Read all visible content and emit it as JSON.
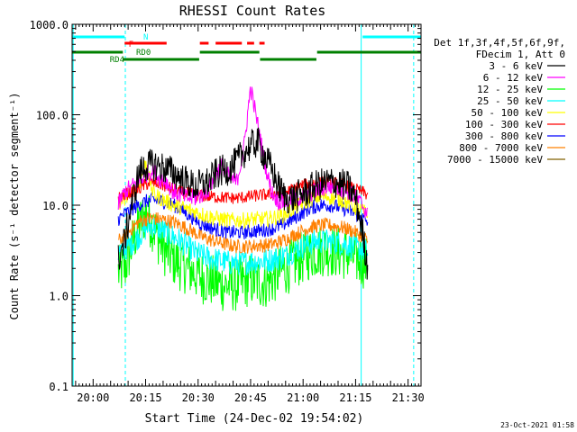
{
  "chart_data": {
    "type": "line",
    "title": "RHESSI Count Rates",
    "xlabel": "Start Time (24-Dec-02 19:54:02)",
    "ylabel": "Count Rate (s⁻¹ detector segment⁻¹)",
    "y_scale": "log",
    "ylim": [
      0.1,
      1000
    ],
    "x_unit": "minutes after 19:54:02 UT",
    "xlim": [
      0,
      99.7
    ],
    "x_ticks": [
      {
        "label": "20:00",
        "x": 6
      },
      {
        "label": "20:15",
        "x": 21
      },
      {
        "label": "20:30",
        "x": 36
      },
      {
        "label": "20:45",
        "x": 51
      },
      {
        "label": "21:00",
        "x": 66
      },
      {
        "label": "21:15",
        "x": 81
      },
      {
        "label": "21:30",
        "x": 96
      }
    ],
    "y_ticks": [
      {
        "label": "0.1",
        "v": 0.1
      },
      {
        "label": "1.0",
        "v": 1
      },
      {
        "label": "10.0",
        "v": 10
      },
      {
        "label": "100.0",
        "v": 100
      },
      {
        "label": "1000.0",
        "v": 1000
      }
    ],
    "legend": {
      "header": [
        "Det 1f,3f,4f,5f,6f,9f,",
        "FDecim 1, Att 0"
      ],
      "placement": "right"
    },
    "series": [
      {
        "name": "3 - 6 keV",
        "color": "#000000",
        "x": [
          13.2,
          15,
          17,
          19,
          21,
          23,
          25,
          27,
          29,
          31,
          33,
          35,
          37,
          39,
          41,
          43,
          45,
          47,
          49,
          51,
          53,
          55,
          57,
          59,
          61,
          63,
          65,
          67,
          69,
          71,
          73,
          75,
          77,
          79,
          81,
          83,
          84.5
        ],
        "y": [
          2.5,
          4,
          10,
          22,
          27,
          28,
          27,
          25,
          23,
          20,
          18,
          16,
          17,
          18,
          22,
          24,
          25,
          30,
          38,
          45,
          50,
          35,
          25,
          16,
          12,
          12,
          13,
          14,
          16,
          17,
          18,
          18,
          17,
          16,
          12,
          5,
          2
        ]
      },
      {
        "name": "6 - 12 keV",
        "color": "#ff00ff",
        "x": [
          13.2,
          15,
          17,
          19,
          21,
          23,
          25,
          27,
          29,
          31,
          33,
          35,
          37,
          39,
          41,
          43,
          45,
          47,
          49,
          51,
          53,
          55,
          57,
          59,
          61,
          63,
          65,
          67,
          69,
          71,
          73,
          75,
          77,
          79,
          81,
          83,
          84.5
        ],
        "y": [
          10,
          14,
          16,
          18,
          22,
          24,
          20,
          18,
          14,
          13,
          12,
          12,
          13,
          15,
          22,
          28,
          20,
          18,
          40,
          200,
          80,
          30,
          14,
          11,
          11,
          12,
          12,
          13,
          14,
          15,
          16,
          16,
          15,
          14,
          12,
          10,
          8
        ]
      },
      {
        "name": "12 - 25 keV",
        "color": "#00ff00",
        "x": [
          13.2,
          15,
          17,
          19,
          21,
          23,
          25,
          27,
          29,
          31,
          33,
          35,
          37,
          39,
          41,
          43,
          45,
          47,
          49,
          51,
          53,
          55,
          57,
          59,
          61,
          63,
          65,
          67,
          69,
          71,
          73,
          75,
          77,
          79,
          81,
          83,
          84.5
        ],
        "y": [
          1.8,
          2,
          3.5,
          6,
          8,
          6,
          4,
          3,
          2.5,
          2.2,
          2,
          1.8,
          1.6,
          1.5,
          1.4,
          1.3,
          1.3,
          1.3,
          1.4,
          1.5,
          1.4,
          1.4,
          1.5,
          1.8,
          2,
          2.2,
          2.5,
          2.8,
          3,
          3.2,
          3.2,
          3.1,
          3,
          2.8,
          2.6,
          2.4,
          2.2
        ]
      },
      {
        "name": "25 - 50 keV",
        "color": "#00ffff",
        "x": [
          13.2,
          15,
          17,
          19,
          21,
          23,
          25,
          27,
          29,
          31,
          33,
          35,
          37,
          39,
          41,
          43,
          45,
          47,
          49,
          51,
          53,
          55,
          57,
          59,
          61,
          63,
          65,
          67,
          69,
          71,
          73,
          75,
          77,
          79,
          81,
          83,
          84.5
        ],
        "y": [
          3,
          3.3,
          3.8,
          4.5,
          5.5,
          6,
          5.5,
          5,
          4.5,
          4,
          3.5,
          3,
          2.8,
          2.6,
          2.5,
          2.4,
          2.3,
          2.3,
          2.3,
          2.4,
          2.4,
          2.4,
          2.5,
          2.6,
          2.8,
          3.1,
          3.4,
          3.7,
          3.9,
          4,
          4,
          3.9,
          3.8,
          3.6,
          3.4,
          3.2,
          3
        ]
      },
      {
        "name": "50 - 100 keV",
        "color": "#ffff00",
        "x": [
          13.2,
          15,
          17,
          19,
          21,
          23,
          25,
          27,
          29,
          31,
          33,
          35,
          37,
          39,
          41,
          43,
          45,
          47,
          49,
          51,
          53,
          55,
          57,
          59,
          61,
          63,
          65,
          67,
          69,
          71,
          73,
          75,
          77,
          79,
          81,
          83,
          84.5
        ],
        "y": [
          10,
          12,
          14,
          16,
          30,
          14,
          12,
          11,
          10,
          9.5,
          9,
          8.5,
          8,
          7.5,
          7.2,
          7,
          6.8,
          6.8,
          6.8,
          7,
          7,
          7,
          7.2,
          7.5,
          8,
          9,
          10,
          11,
          12,
          12.5,
          12.5,
          12,
          11.5,
          10.5,
          9.5,
          8.5,
          8
        ]
      },
      {
        "name": "100 - 300 keV",
        "color": "#ff0000",
        "x": [
          13.2,
          15,
          17,
          19,
          21,
          23,
          25,
          27,
          29,
          31,
          33,
          35,
          37,
          39,
          41,
          43,
          45,
          47,
          49,
          51,
          53,
          55,
          57,
          59,
          61,
          63,
          65,
          67,
          69,
          71,
          73,
          75,
          77,
          79,
          81,
          83,
          84.5
        ],
        "y": [
          12,
          13,
          14,
          15,
          17,
          18,
          17,
          16,
          15,
          14,
          13.5,
          13,
          12.8,
          12.5,
          12.3,
          12.2,
          12,
          12,
          12.2,
          12.5,
          12.8,
          13,
          13.2,
          13.5,
          14,
          15,
          16,
          17,
          17.5,
          18,
          18,
          17.5,
          17,
          16,
          15,
          14,
          13
        ]
      },
      {
        "name": "300 - 800 keV",
        "color": "#0000ff",
        "x": [
          13.2,
          15,
          17,
          19,
          21,
          23,
          25,
          27,
          29,
          31,
          33,
          35,
          37,
          39,
          41,
          43,
          45,
          47,
          49,
          51,
          53,
          55,
          57,
          59,
          61,
          63,
          65,
          67,
          69,
          71,
          73,
          75,
          77,
          79,
          81,
          83,
          84.5
        ],
        "y": [
          7,
          8,
          9,
          10,
          11,
          11.5,
          11.2,
          10.8,
          10,
          9,
          8,
          7,
          6.2,
          5.8,
          5.4,
          5.2,
          5,
          5,
          5,
          5.1,
          5.2,
          5.3,
          5.5,
          5.8,
          6.3,
          7,
          7.8,
          8.8,
          9.5,
          10,
          10,
          9.8,
          9.3,
          8.8,
          8,
          7.2,
          6.5
        ]
      },
      {
        "name": "800 - 7000 keV",
        "color": "#ff8000",
        "x": [
          13.2,
          15,
          17,
          19,
          21,
          23,
          25,
          27,
          29,
          31,
          33,
          35,
          37,
          39,
          41,
          43,
          45,
          47,
          49,
          51,
          53,
          55,
          57,
          59,
          61,
          63,
          65,
          67,
          69,
          71,
          73,
          75,
          77,
          79,
          81,
          83,
          84.5
        ],
        "y": [
          4,
          4.5,
          5.5,
          6.5,
          7,
          7.2,
          7,
          6.8,
          6.5,
          6,
          5.5,
          5,
          4.5,
          4.2,
          4,
          3.8,
          3.6,
          3.5,
          3.5,
          3.5,
          3.6,
          3.6,
          3.7,
          3.9,
          4.2,
          4.6,
          5,
          5.5,
          5.8,
          6,
          6,
          5.9,
          5.7,
          5.4,
          5,
          4.5,
          4
        ]
      },
      {
        "name": "7000 - 15000 keV",
        "color": "#806000",
        "x": [],
        "y": []
      }
    ],
    "attenuator_states": [
      {
        "label": "N",
        "color": "#00ffff",
        "segments": [
          [
            0,
            15
          ],
          [
            83,
            99.7
          ]
        ]
      },
      {
        "label": "F",
        "color": "#ff0000",
        "segments": [
          [
            15,
            27
          ],
          [
            36.5,
            39
          ],
          [
            41,
            48.5
          ],
          [
            50,
            52
          ],
          [
            53.5,
            55
          ]
        ]
      },
      {
        "label": "RD0",
        "color": "#008000",
        "segments": [
          [
            0,
            14.5
          ],
          [
            36.5,
            53.5
          ],
          [
            70,
            99.7
          ]
        ]
      },
      {
        "label": "RD4",
        "color": "#008000",
        "segments": [
          [
            14.5,
            36.3
          ],
          [
            53.7,
            69.8
          ]
        ]
      }
    ],
    "vertical_markers": [
      {
        "x": 0.3,
        "style": "solid",
        "color": "#00ffff"
      },
      {
        "x": 15.2,
        "style": "dashed",
        "color": "#00ffff"
      },
      {
        "x": 82.6,
        "style": "solid",
        "color": "#00ffff"
      },
      {
        "x": 97.6,
        "style": "dashed",
        "color": "#00ffff"
      }
    ]
  },
  "footer": {
    "timestamp": "23-Oct-2021 01:58"
  }
}
